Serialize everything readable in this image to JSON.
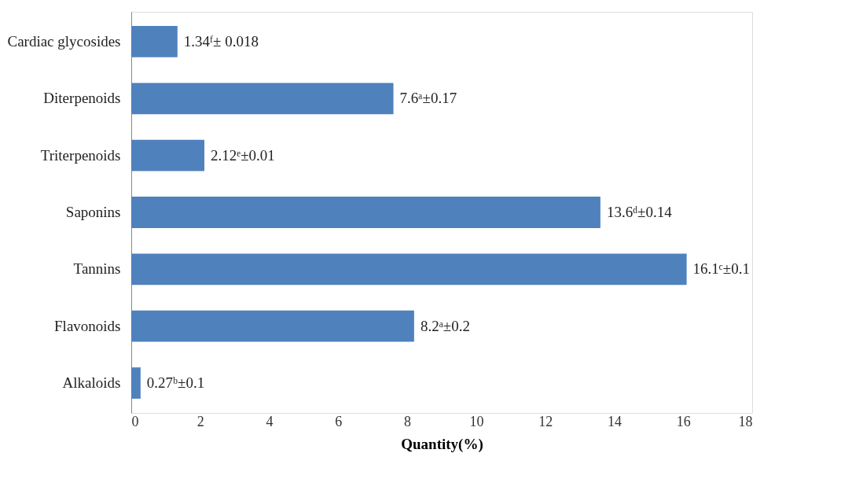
{
  "chart_data": {
    "type": "bar",
    "orientation": "horizontal",
    "categories": [
      "Cardiac glycosides",
      "Diterpenoids",
      "Triterpenoids",
      "Saponins",
      "Tannins",
      "Flavonoids",
      "Alkaloids"
    ],
    "values": [
      1.34,
      7.6,
      2.12,
      13.6,
      16.1,
      8.2,
      0.27
    ],
    "value_labels": [
      "1.34ᶠ± 0.018",
      "7.6ᵃ±0.17",
      "2.12ᵉ±0.01",
      "13.6ᵈ±0.14",
      "16.1ᶜ±0.1",
      "8.2ᵃ±0.2",
      "0.27ᵇ±0.1"
    ],
    "color": "#4f81bd",
    "xlabel": "Quantity(%)",
    "xlim": [
      0,
      18
    ],
    "xticks": [
      0,
      2,
      4,
      6,
      8,
      10,
      12,
      14,
      16,
      18
    ]
  }
}
